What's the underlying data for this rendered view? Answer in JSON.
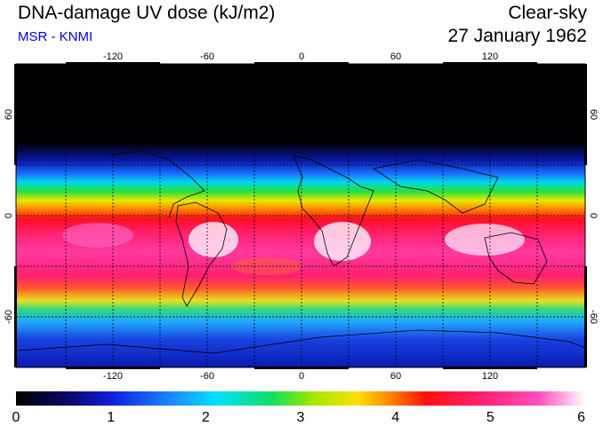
{
  "header": {
    "title": "DNA-damage UV dose (kJ/m2)",
    "source": "MSR - KNMI",
    "condition": "Clear-sky",
    "date": "27 January 1962"
  },
  "axes": {
    "lon_ticks": [
      "-120",
      "-60",
      "0",
      "60",
      "120"
    ],
    "lat_ticks": [
      "60",
      "0",
      "-60"
    ]
  },
  "colorbar": {
    "ticks": [
      "0",
      "1",
      "2",
      "3",
      "4",
      "5",
      "6"
    ],
    "min": 0,
    "max": 6
  },
  "colors": {
    "title": "#000000",
    "source": "#0000ee"
  }
}
